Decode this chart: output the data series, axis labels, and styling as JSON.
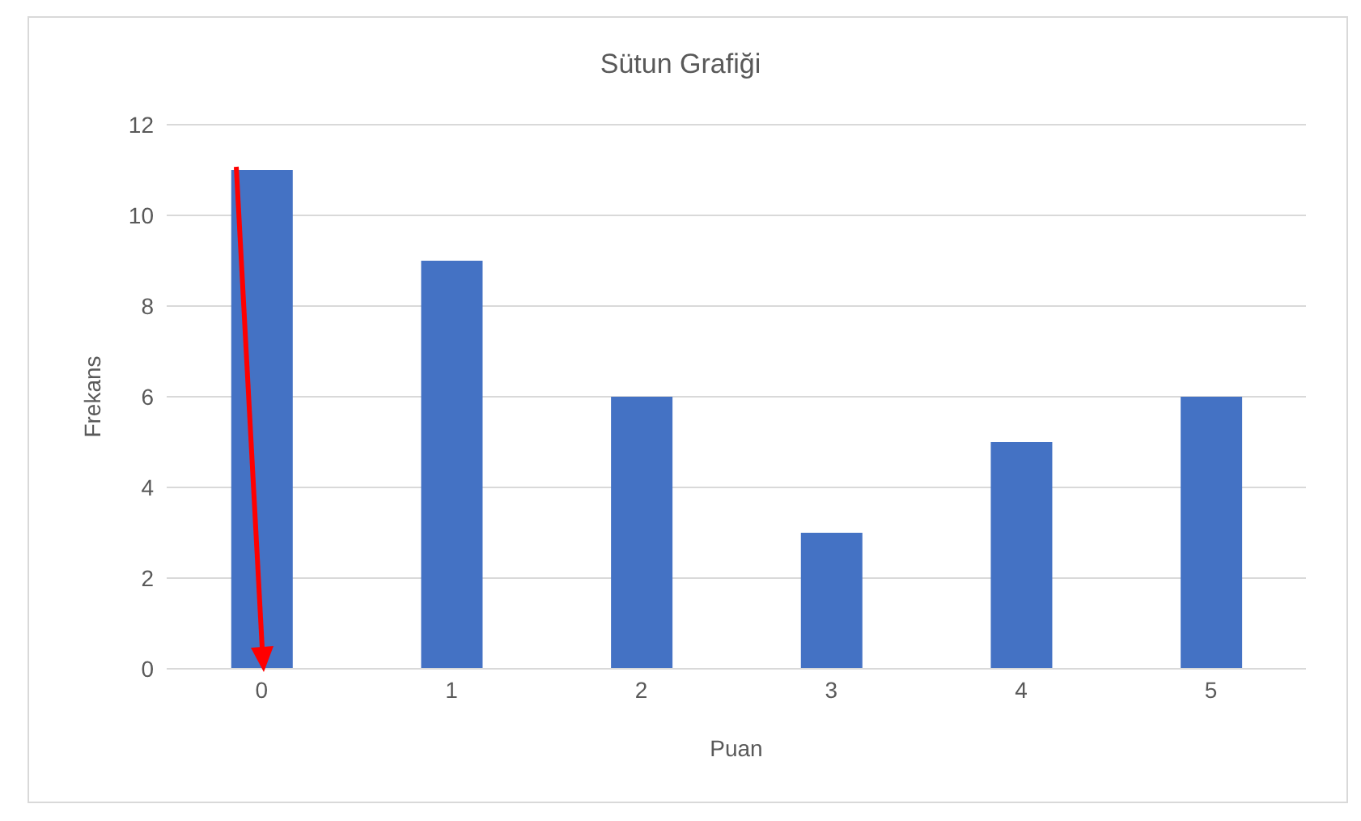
{
  "chart_data": {
    "type": "bar",
    "title": "Sütun Grafiği",
    "xlabel": "Puan",
    "ylabel": "Frekans",
    "categories": [
      "0",
      "1",
      "2",
      "3",
      "4",
      "5"
    ],
    "values": [
      11,
      9,
      6,
      3,
      5,
      6
    ],
    "color": "#4472c4",
    "ylim": [
      0,
      12
    ],
    "yticks": [
      0,
      2,
      4,
      6,
      8,
      10,
      12
    ],
    "grid": "y"
  }
}
